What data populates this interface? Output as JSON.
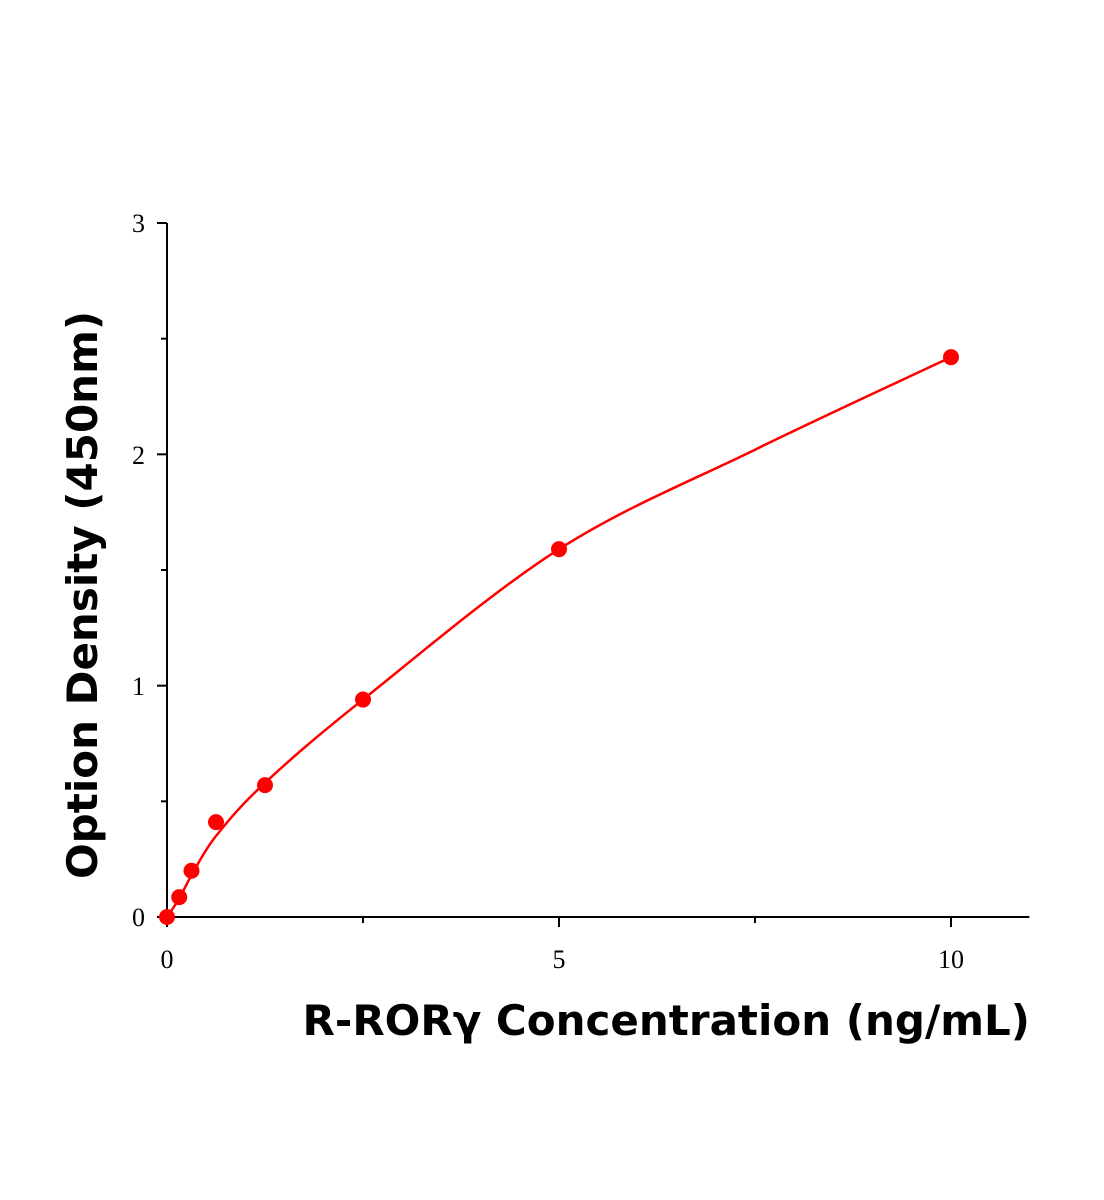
{
  "chart_data": {
    "type": "scatter",
    "xlabel": "R-RORγ Concentration (ng/mL)",
    "ylabel": "Option Density (450nm)",
    "xlim": [
      0,
      11
    ],
    "ylim": [
      0,
      3
    ],
    "xticks": [
      "0",
      "5",
      "10"
    ],
    "yticks": [
      "0",
      "1",
      "2",
      "3"
    ],
    "grid": false,
    "color": "#ff0000",
    "series": [
      {
        "x": [
          0,
          0.156,
          0.3125,
          0.625,
          1.25,
          2.5,
          5,
          10
        ],
        "y": [
          0,
          0.086,
          0.2,
          0.41,
          0.57,
          0.94,
          1.59,
          2.42
        ]
      }
    ],
    "fit_curve": {
      "x": [
        0,
        0.156,
        0.3125,
        0.625,
        1.25,
        2.5,
        5,
        7.5,
        10
      ],
      "y": [
        0,
        0.08,
        0.18,
        0.35,
        0.58,
        0.94,
        1.59,
        2.02,
        2.42
      ]
    }
  }
}
